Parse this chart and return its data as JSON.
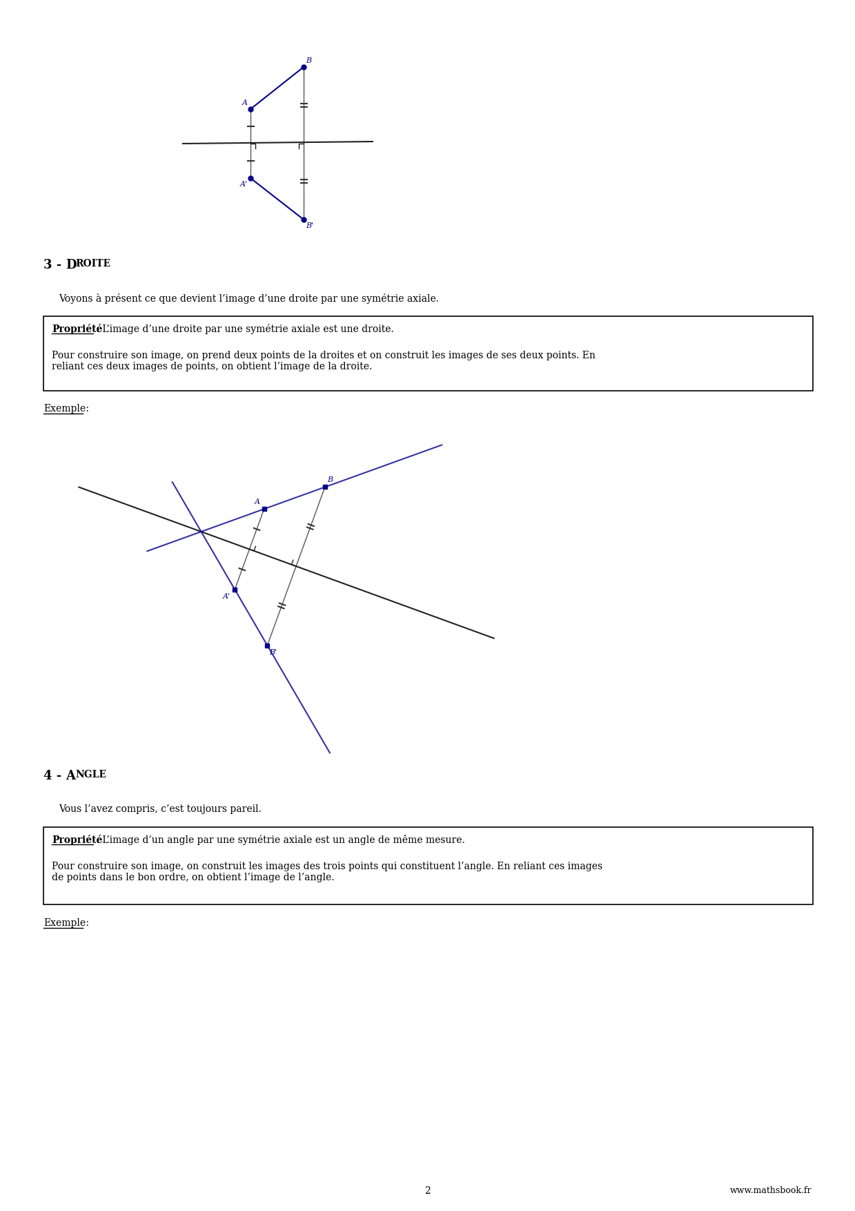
{
  "page_width": 12.39,
  "page_height": 17.54,
  "bg_color": "#ffffff",
  "blue_color": "#00008B",
  "section3_intro": "Voyons à présent ce que devient l’image d’une droite par une symétrie axiale.",
  "section3_prop1": "Propriété",
  "section3_prop1_text": " : L’image d’une droite par une symétrie axiale est une droite.",
  "section3_prop2": "Pour construire son image, on prend deux points de la droites et on construit les images de ses deux points. En\nreliant ces deux images de points, on obtient l’image de la droite.",
  "section4_intro": "Vous l’avez compris, c’est toujours pareil.",
  "section4_prop1": "Propriété",
  "section4_prop1_text": " : L’image d’un angle par une symétrie axiale est un angle de même mesure.",
  "section4_prop2": "Pour construire son image, on construit les images des trois points qui constituent l’angle. En reliant ces images\nde points dans le bon ordre, on obtient l’image de l’angle.",
  "footer_page": "2",
  "footer_website": "www.mathsbook.fr"
}
